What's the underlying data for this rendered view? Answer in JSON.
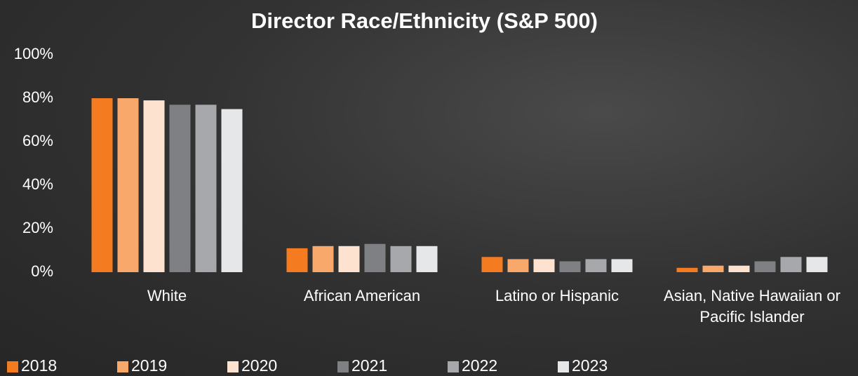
{
  "chart_data": {
    "type": "bar",
    "title": "Director Race/Ethnicity (S&P 500)",
    "categories": [
      "White",
      "African American",
      "Latino or Hispanic",
      "Asian, Native Hawaiian or Pacific Islander"
    ],
    "series": [
      {
        "name": "2018",
        "color": "#f47b20",
        "values": [
          80,
          11,
          7,
          2
        ]
      },
      {
        "name": "2019",
        "color": "#f8a86b",
        "values": [
          80,
          12,
          6,
          3
        ]
      },
      {
        "name": "2020",
        "color": "#fde3cf",
        "values": [
          79,
          12,
          6,
          3
        ]
      },
      {
        "name": "2021",
        "color": "#7f8083",
        "values": [
          77,
          13,
          5,
          5
        ]
      },
      {
        "name": "2022",
        "color": "#a7a8ab",
        "values": [
          77,
          12,
          6,
          7
        ]
      },
      {
        "name": "2023",
        "color": "#e6e7e8",
        "values": [
          75,
          12,
          6,
          7
        ]
      }
    ],
    "ylim": [
      0,
      100
    ],
    "yticks": [
      {
        "value": 0,
        "label": "0%"
      },
      {
        "value": 20,
        "label": "20%"
      },
      {
        "value": 40,
        "label": "40%"
      },
      {
        "value": 60,
        "label": "60%"
      },
      {
        "value": 80,
        "label": "80%"
      },
      {
        "value": 100,
        "label": "100%"
      }
    ],
    "grid": false,
    "legend": "bottom"
  }
}
